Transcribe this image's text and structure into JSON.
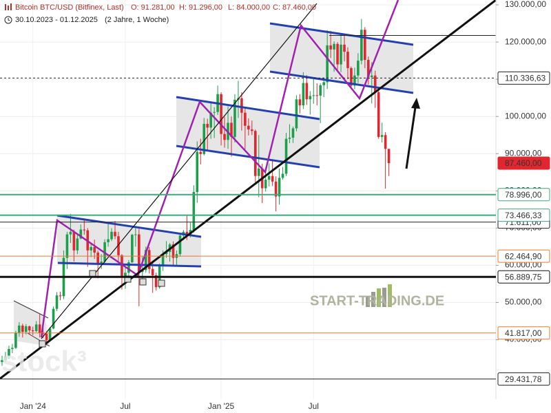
{
  "header": {
    "title": "Bitcoin BTC/USD (Bitfinex, Last)",
    "open": "O: 91.281,00",
    "high": "H: 91.296,00",
    "low": "L: 84.000,00",
    "close": "C: 87.460,00",
    "range": "30.10.2023 - 01.12.2025",
    "period": "(2 Jahre, 1 Woche)"
  },
  "watermarks": [
    "START-TRADING.DE",
    "stock³"
  ],
  "chart_data": {
    "type": "candlestick",
    "categories": [
      null,
      null,
      null,
      null,
      null,
      null,
      null,
      null,
      null,
      "Jan '24",
      null,
      null,
      null,
      null,
      null,
      null,
      null,
      null,
      null,
      null,
      null,
      null,
      null,
      null,
      null,
      null,
      null,
      null,
      null,
      null,
      null,
      null,
      null,
      null,
      null,
      null,
      "Jul",
      null,
      null,
      null,
      null,
      null,
      null,
      null,
      null,
      null,
      null,
      null,
      null,
      null,
      null,
      null,
      null,
      null,
      null,
      null,
      null,
      null,
      null,
      null,
      null,
      null,
      null,
      null,
      "Jan '25",
      null,
      null,
      null,
      null,
      null,
      null,
      null,
      null,
      null,
      null,
      null,
      null,
      null,
      null,
      null,
      null,
      null,
      null,
      null,
      null,
      null,
      null,
      null,
      null,
      null,
      null,
      "Jul",
      null,
      null,
      null,
      null,
      null,
      null,
      null,
      null,
      null,
      null,
      null,
      null,
      null,
      null,
      null,
      null,
      null,
      null,
      null,
      null,
      null,
      null
    ],
    "open": [
      34000,
      34500,
      35500,
      37500,
      37800,
      41900,
      43800,
      42100,
      43600,
      42500,
      42300,
      44100,
      41800,
      41600,
      39900,
      43000,
      48300,
      51900,
      51700,
      62000,
      68300,
      69000,
      64000,
      67200,
      69600,
      69400,
      64000,
      64900,
      63400,
      60600,
      61000,
      66200,
      67000,
      69000,
      67800,
      62700,
      56700,
      58000,
      60800,
      68200,
      68300,
      58200,
      58700,
      64100,
      59000,
      57300,
      54100,
      60000,
      63000,
      63600,
      65600,
      62000,
      63000,
      68000,
      69000,
      68300,
      69500,
      79700,
      90500,
      89900,
      98000,
      97000,
      101000,
      101200,
      106000,
      95300,
      93700,
      98300,
      94500,
      104500,
      104900,
      101000,
      97500,
      96500,
      96100,
      84000,
      86000,
      80700,
      83000,
      84000,
      82500,
      78500,
      83500,
      84600,
      94000,
      94300,
      96800,
      104600,
      103000,
      109000,
      104600,
      105500,
      105700,
      105600,
      108400,
      109200,
      119100,
      118000,
      119500,
      114000,
      119300,
      117400,
      113000,
      108300,
      111000,
      115000,
      123300,
      115200,
      110600,
      111000,
      106500,
      94500,
      95000,
      91281
    ],
    "high": [
      35700,
      36700,
      38400,
      38900,
      42400,
      44700,
      44300,
      44200,
      43800,
      43500,
      45000,
      47000,
      43300,
      42200,
      43400,
      48900,
      52800,
      52900,
      64000,
      69000,
      73800,
      69600,
      68500,
      71000,
      72600,
      70000,
      66000,
      66900,
      64000,
      63000,
      67000,
      71400,
      70000,
      71900,
      69000,
      63000,
      59400,
      61400,
      68500,
      70000,
      69800,
      62500,
      65000,
      64900,
      61200,
      58000,
      60500,
      64000,
      66500,
      66000,
      66400,
      64000,
      68400,
      69500,
      73600,
      71500,
      81500,
      93300,
      94000,
      99600,
      99400,
      103900,
      102500,
      108300,
      106500,
      99900,
      102700,
      100000,
      106000,
      109600,
      106500,
      102500,
      99500,
      98900,
      96500,
      95000,
      87300,
      85300,
      87400,
      88500,
      83900,
      86000,
      86400,
      95600,
      97900,
      97300,
      105700,
      106000,
      111900,
      111100,
      106800,
      110300,
      108900,
      108900,
      110500,
      123200,
      123000,
      120200,
      120000,
      122300,
      121800,
      118600,
      113400,
      113100,
      117000,
      126200,
      124000,
      116100,
      114600,
      112300,
      107500,
      98300,
      95800,
      91296
    ],
    "low": [
      33000,
      33900,
      34900,
      36400,
      37500,
      40800,
      40600,
      41400,
      41500,
      41200,
      42000,
      40600,
      40500,
      38500,
      39500,
      42800,
      47700,
      50600,
      50900,
      59000,
      66000,
      61000,
      63000,
      67000,
      68200,
      59600,
      62200,
      61700,
      56500,
      59000,
      60600,
      65000,
      66500,
      67000,
      61000,
      53500,
      53700,
      56800,
      60600,
      65000,
      49000,
      54600,
      58000,
      57800,
      52600,
      53200,
      53700,
      58500,
      62000,
      61000,
      59800,
      60100,
      62300,
      66800,
      66800,
      67500,
      68800,
      76800,
      87100,
      89500,
      90800,
      94000,
      94200,
      100400,
      92200,
      91600,
      91300,
      89200,
      93000,
      99600,
      96200,
      91200,
      94900,
      95000,
      82300,
      78300,
      76700,
      79800,
      81200,
      81300,
      74500,
      76300,
      83000,
      84000,
      92800,
      92900,
      96000,
      100800,
      102000,
      103100,
      100500,
      103400,
      103000,
      98200,
      105200,
      107400,
      115700,
      112000,
      112300,
      111900,
      114800,
      110000,
      107300,
      107300,
      109000,
      114000,
      113000,
      108600,
      103500,
      102300,
      94000,
      93000,
      80600,
      84000
    ],
    "close": [
      34500,
      35500,
      37500,
      37800,
      41900,
      43800,
      42100,
      43600,
      42500,
      42300,
      44100,
      41800,
      41600,
      39900,
      43000,
      48300,
      51900,
      51700,
      62000,
      68300,
      69000,
      64000,
      67200,
      69600,
      69400,
      64000,
      64900,
      63400,
      60600,
      61000,
      66200,
      67000,
      69000,
      67800,
      62700,
      56700,
      58000,
      60800,
      68200,
      68300,
      58200,
      58700,
      64100,
      59000,
      57300,
      54100,
      60000,
      63000,
      63600,
      65600,
      62000,
      63000,
      68000,
      69000,
      68300,
      69500,
      79700,
      90500,
      89900,
      98000,
      97000,
      101000,
      101200,
      106000,
      95300,
      93700,
      98300,
      94500,
      104500,
      104900,
      101000,
      97500,
      96500,
      96100,
      84000,
      86000,
      80700,
      83000,
      84000,
      82500,
      78500,
      83500,
      84600,
      94000,
      94300,
      96800,
      104600,
      103000,
      109000,
      104600,
      105500,
      105700,
      105600,
      108400,
      109200,
      119100,
      118000,
      119500,
      114000,
      119300,
      117400,
      113000,
      108300,
      111000,
      115000,
      123300,
      115200,
      110600,
      111000,
      106500,
      94500,
      95000,
      91300,
      87460
    ],
    "up_color": "#1c9e4b",
    "down_color": "#e0262f",
    "ylim": [
      24000,
      131300
    ],
    "yticks": [
      {
        "value": 40000,
        "label": "40.000,00"
      },
      {
        "value": 50000,
        "label": "50.000,00"
      },
      {
        "value": 60000,
        "label": "60.000,00"
      },
      {
        "value": 70000,
        "label": "70.000,00"
      },
      {
        "value": 80000,
        "label": "80.000,00"
      },
      {
        "value": 90000,
        "label": "90.000,00"
      },
      {
        "value": 100000,
        "label": "100.000,00"
      },
      {
        "value": 110000,
        "label": "110.000,00"
      },
      {
        "value": 120000,
        "label": "120.000,00"
      },
      {
        "value": 130000,
        "label": "130.000,00"
      }
    ],
    "grid": true,
    "levels": [
      {
        "value": 110336.63,
        "label": "110.336,63",
        "color": "#222222",
        "width": 1,
        "dash": true
      },
      {
        "value": 71611,
        "label": "71.611,00",
        "color": "#222222",
        "width": 1
      },
      {
        "value": 87460,
        "label": "87.460,00",
        "color": "#e0262f",
        "width": 0,
        "fill": "#e0262f"
      },
      {
        "value": 78996,
        "label": "78.996,00",
        "color": "#3aaa7a",
        "width": 2
      },
      {
        "value": 73466.33,
        "label": "73.466,33",
        "color": "#3aaa7a",
        "width": 2
      },
      {
        "value": 62464.9,
        "label": "62.464,90",
        "color": "#e8772e",
        "width": 1
      },
      {
        "value": 56889.75,
        "label": "56.889,75",
        "color": "#111111",
        "width": 3
      },
      {
        "value": 41817,
        "label": "41.817,00",
        "color": "#e8772e",
        "width": 1
      },
      {
        "value": 29431.78,
        "label": "29.431,78",
        "color": "#222222",
        "width": 1
      }
    ]
  }
}
